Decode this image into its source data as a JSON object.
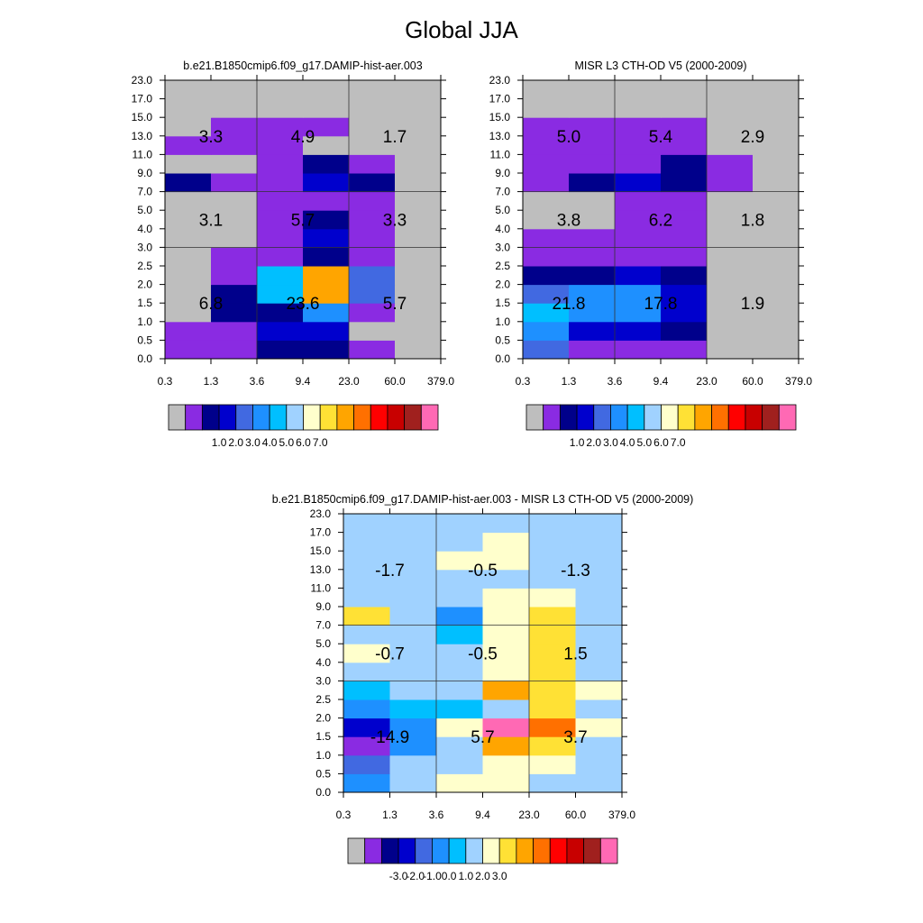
{
  "figure_title": "Global JJA",
  "colors": {
    "scale": [
      "#BEBEBE",
      "#8A2BE2",
      "#00008B",
      "#0000CD",
      "#4169E1",
      "#1E90FF",
      "#00BFFF",
      "#A0D2FF",
      "#FFFFCC",
      "#FFE135",
      "#FFA500",
      "#FF7000",
      "#FF0000",
      "#C80000",
      "#A0201E",
      "#FF69B4"
    ],
    "grid_line": "#333333"
  },
  "chart_data": [
    {
      "id": "panel1",
      "type": "heatmap",
      "title": "b.e21.B1850cmip6.f09_g17.DAMIP-hist-aer.003",
      "xticks": [
        "0.3",
        "1.3",
        "3.6",
        "9.4",
        "23.0",
        "60.0",
        "379.0"
      ],
      "yticks": [
        "0.0",
        "0.5",
        "1.0",
        "1.5",
        "2.0",
        "2.5",
        "3.0",
        "4.0",
        "5.0",
        "7.0",
        "9.0",
        "11.0",
        "13.0",
        "15.0",
        "17.0",
        "23.0"
      ],
      "cells_bottom_to_top": [
        [
          1,
          1,
          2,
          2,
          1,
          0
        ],
        [
          1,
          1,
          3,
          3,
          0,
          0
        ],
        [
          0,
          2,
          2,
          5,
          1,
          0
        ],
        [
          0,
          2,
          6,
          10,
          4,
          0
        ],
        [
          0,
          1,
          6,
          10,
          4,
          0
        ],
        [
          0,
          1,
          1,
          2,
          1,
          0
        ],
        [
          0,
          0,
          1,
          3,
          1,
          0
        ],
        [
          0,
          0,
          1,
          2,
          1,
          0
        ],
        [
          0,
          0,
          1,
          1,
          1,
          0
        ],
        [
          2,
          1,
          1,
          3,
          2,
          0
        ],
        [
          0,
          0,
          1,
          2,
          1,
          0
        ],
        [
          1,
          1,
          1,
          0,
          0,
          0
        ],
        [
          0,
          1,
          1,
          1,
          0,
          0
        ],
        [
          0,
          0,
          0,
          0,
          0,
          0
        ],
        [
          0,
          0,
          0,
          0,
          0,
          0
        ]
      ],
      "block_values": [
        [
          "6.8",
          "23.6",
          "5.7"
        ],
        [
          "3.1",
          "5.7",
          "3.3"
        ],
        [
          "3.3",
          "4.9",
          "1.7"
        ]
      ],
      "colorbar_labels": [
        "1.0",
        "2.0",
        "3.0",
        "4.0",
        "5.0",
        "6.0",
        "7.0"
      ]
    },
    {
      "id": "panel2",
      "type": "heatmap",
      "title": "MISR L3 CTH-OD V5 (2000-2009)",
      "xticks": [
        "0.3",
        "1.3",
        "3.6",
        "9.4",
        "23.0",
        "60.0",
        "379.0"
      ],
      "yticks": [
        "0.0",
        "0.5",
        "1.0",
        "1.5",
        "2.0",
        "2.5",
        "3.0",
        "4.0",
        "5.0",
        "7.0",
        "9.0",
        "11.0",
        "13.0",
        "15.0",
        "17.0",
        "23.0"
      ],
      "cells_bottom_to_top": [
        [
          4,
          1,
          1,
          1,
          0,
          0
        ],
        [
          5,
          3,
          3,
          2,
          0,
          0
        ],
        [
          6,
          5,
          5,
          3,
          0,
          0
        ],
        [
          4,
          5,
          5,
          3,
          0,
          0
        ],
        [
          2,
          2,
          3,
          2,
          0,
          0
        ],
        [
          1,
          1,
          1,
          1,
          0,
          0
        ],
        [
          1,
          1,
          1,
          1,
          0,
          0
        ],
        [
          0,
          0,
          1,
          1,
          0,
          0
        ],
        [
          0,
          0,
          1,
          1,
          0,
          0
        ],
        [
          1,
          2,
          3,
          2,
          1,
          0
        ],
        [
          1,
          1,
          1,
          2,
          1,
          0
        ],
        [
          1,
          1,
          1,
          1,
          0,
          0
        ],
        [
          1,
          1,
          1,
          1,
          0,
          0
        ],
        [
          0,
          0,
          0,
          0,
          0,
          0
        ],
        [
          0,
          0,
          0,
          0,
          0,
          0
        ]
      ],
      "block_values": [
        [
          "21.8",
          "17.8",
          "1.9"
        ],
        [
          "3.8",
          "6.2",
          "1.8"
        ],
        [
          "5.0",
          "5.4",
          "2.9"
        ]
      ],
      "colorbar_labels": [
        "1.0",
        "2.0",
        "3.0",
        "4.0",
        "5.0",
        "6.0",
        "7.0"
      ]
    },
    {
      "id": "panel3",
      "type": "heatmap",
      "title": "b.e21.B1850cmip6.f09_g17.DAMIP-hist-aer.003 - MISR L3 CTH-OD V5 (2000-2009)",
      "xticks": [
        "0.3",
        "1.3",
        "3.6",
        "9.4",
        "23.0",
        "60.0",
        "379.0"
      ],
      "yticks": [
        "0.0",
        "0.5",
        "1.0",
        "1.5",
        "2.0",
        "2.5",
        "3.0",
        "4.0",
        "5.0",
        "7.0",
        "9.0",
        "11.0",
        "13.0",
        "15.0",
        "17.0",
        "23.0"
      ],
      "cells_bottom_to_top": [
        [
          5,
          7,
          8,
          8,
          7,
          7
        ],
        [
          4,
          7,
          7,
          8,
          8,
          7
        ],
        [
          1,
          5,
          7,
          10,
          9,
          7
        ],
        [
          3,
          5,
          8,
          15,
          11,
          8
        ],
        [
          5,
          6,
          6,
          7,
          9,
          7
        ],
        [
          6,
          7,
          7,
          10,
          9,
          8
        ],
        [
          7,
          7,
          7,
          8,
          9,
          7
        ],
        [
          8,
          7,
          7,
          8,
          9,
          7
        ],
        [
          7,
          7,
          6,
          8,
          9,
          7
        ],
        [
          9,
          7,
          5,
          8,
          9,
          7
        ],
        [
          7,
          7,
          7,
          8,
          8,
          7
        ],
        [
          7,
          7,
          7,
          7,
          7,
          7
        ],
        [
          7,
          7,
          8,
          8,
          7,
          7
        ],
        [
          7,
          7,
          7,
          8,
          7,
          7
        ],
        [
          7,
          7,
          7,
          7,
          7,
          7
        ]
      ],
      "block_values": [
        [
          "-14.9",
          "5.7",
          "3.7"
        ],
        [
          "-0.7",
          "-0.5",
          "1.5"
        ],
        [
          "-1.7",
          "-0.5",
          "-1.3"
        ]
      ],
      "colorbar_labels": [
        "-3.0",
        "-2.0",
        "-1.0",
        "0.0",
        "1.0",
        "2.0",
        "3.0"
      ]
    }
  ]
}
